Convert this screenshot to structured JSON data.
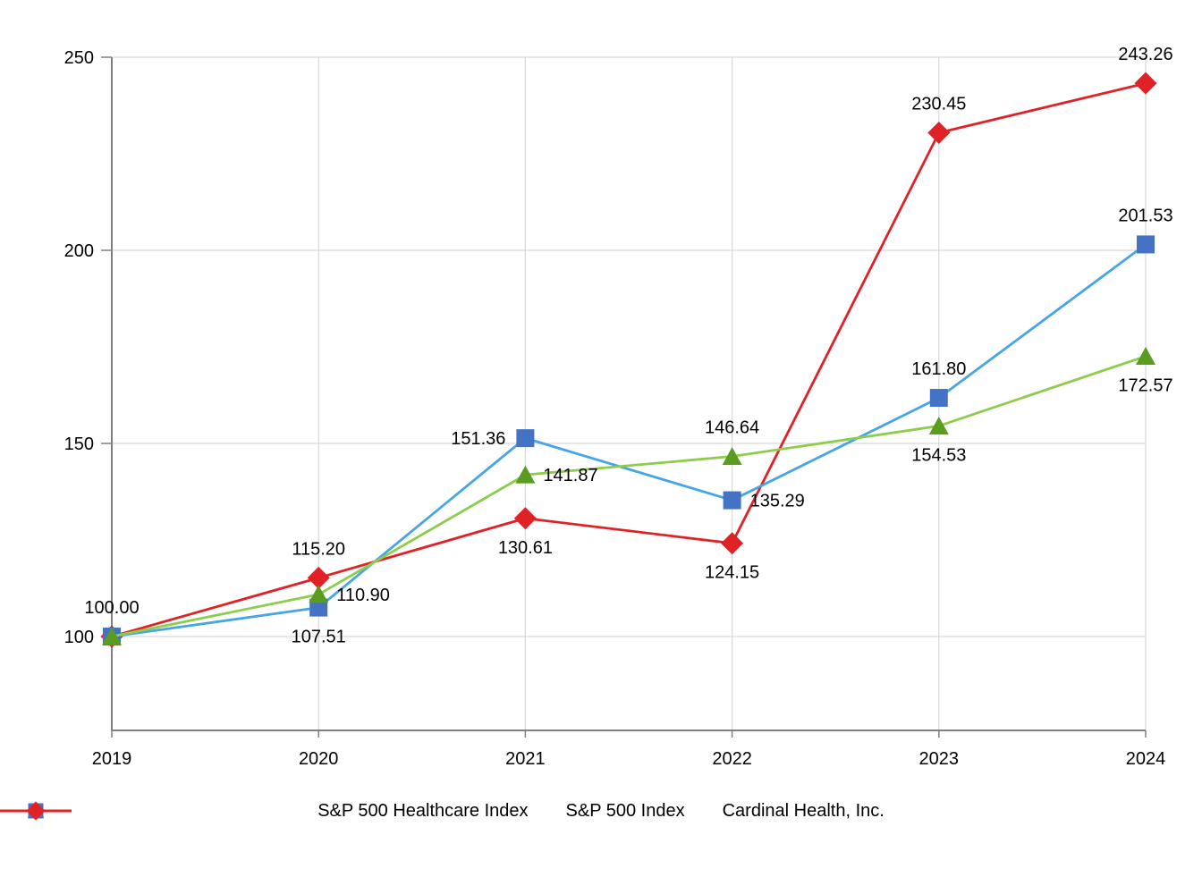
{
  "chart_data": {
    "type": "line",
    "title": "",
    "xlabel": "",
    "ylabel": "",
    "x_labels": [
      "2019",
      "2020",
      "2021",
      "2022",
      "2023",
      "2024"
    ],
    "yticks": [
      "100",
      "150",
      "200",
      "250"
    ],
    "ylim": [
      75.7,
      250
    ],
    "grid": true,
    "legend_position": "bottom",
    "series": [
      {
        "name": "S&P 500 Healthcare Index",
        "marker": "triangle",
        "line_color": "#8cce4c",
        "marker_color": "#5a9c20",
        "values": [
          100.0,
          110.9,
          141.87,
          146.64,
          154.53,
          172.57
        ],
        "point_labels": [
          null,
          "110.90",
          "141.87",
          "146.64",
          "154.53",
          "172.57"
        ],
        "label_placements": [
          null,
          "right",
          "right",
          "above",
          "below",
          "below"
        ]
      },
      {
        "name": "S&P 500 Index",
        "marker": "square",
        "line_color": "#47a5e5",
        "marker_color": "#4472c4",
        "values": [
          100.0,
          107.51,
          151.36,
          135.29,
          161.8,
          201.53
        ],
        "point_labels": [
          null,
          "107.51",
          "151.36",
          "135.29",
          "161.80",
          "201.53"
        ],
        "label_placements": [
          null,
          "below",
          "left",
          "right",
          "above",
          "above"
        ]
      },
      {
        "name": "Cardinal Health, Inc.",
        "marker": "diamond",
        "line_color": "#e02227",
        "marker_color": "#e02227",
        "values": [
          100.0,
          115.2,
          130.61,
          124.15,
          230.45,
          243.26
        ],
        "point_labels": [
          "100.00",
          "115.20",
          "130.61",
          "124.15",
          "230.45",
          "243.26"
        ],
        "label_placements": [
          "above",
          "above",
          "below",
          "below",
          "above",
          "above"
        ]
      }
    ]
  },
  "colors": {
    "background": "#ffffff",
    "axis": "#808080",
    "gridline": "#d9d9d9",
    "text": "#000000"
  }
}
